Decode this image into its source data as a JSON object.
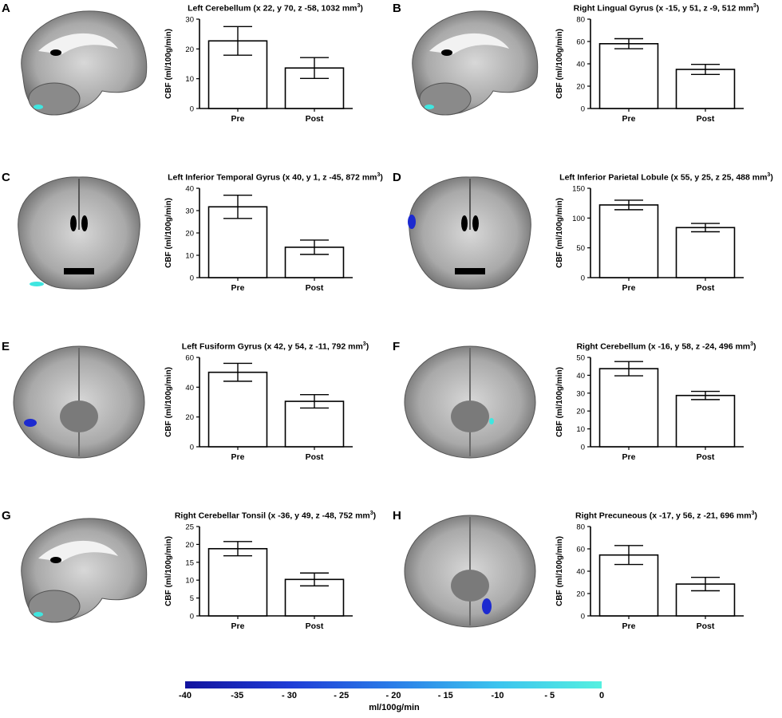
{
  "panels": [
    {
      "letter": "A",
      "view": "sagittal",
      "title": "Left Cerebellum (x 22, y 70, z -58, 1032 mm",
      "title_sup": "3",
      "title_end": ")",
      "chart_data": {
        "type": "bar",
        "categories": [
          "Pre",
          "Post"
        ],
        "values": [
          22.7,
          13.6
        ],
        "errors": [
          4.8,
          3.5
        ],
        "ylabel": "CBF (ml/100g/min)",
        "ylim": [
          0,
          30
        ],
        "yticks": [
          0,
          10,
          20,
          30
        ]
      }
    },
    {
      "letter": "B",
      "view": "sagittal",
      "title": "Right Lingual Gyrus (x -15, y 51, z -9, 512 mm",
      "title_sup": "3",
      "title_end": ")",
      "chart_data": {
        "type": "bar",
        "categories": [
          "Pre",
          "Post"
        ],
        "values": [
          58,
          35
        ],
        "errors": [
          4.5,
          4.5
        ],
        "ylabel": "CBF (ml/100g/min)",
        "ylim": [
          0,
          80
        ],
        "yticks": [
          0,
          20,
          40,
          60,
          80
        ]
      }
    },
    {
      "letter": "C",
      "view": "coronal",
      "title": "Left Inferior Temporal Gyrus (x 40, y 1, z -45, 872 mm",
      "title_sup": "3",
      "title_end": ")",
      "chart_data": {
        "type": "bar",
        "categories": [
          "Pre",
          "Post"
        ],
        "values": [
          31.7,
          13.6
        ],
        "errors": [
          5.2,
          3.2
        ],
        "ylabel": "CBF (ml/100g/min)",
        "ylim": [
          0,
          40
        ],
        "yticks": [
          0,
          10,
          20,
          30,
          40
        ]
      }
    },
    {
      "letter": "D",
      "view": "coronal",
      "title": "Left Inferior Parietal Lobule (x 55, y 25, z 25, 488 mm",
      "title_sup": "3",
      "title_end": ")",
      "chart_data": {
        "type": "bar",
        "categories": [
          "Pre",
          "Post"
        ],
        "values": [
          122,
          84
        ],
        "errors": [
          8,
          7
        ],
        "ylabel": "CBF (ml/100g/min)",
        "ylim": [
          0,
          150
        ],
        "yticks": [
          0,
          50,
          100,
          150
        ]
      }
    },
    {
      "letter": "E",
      "view": "axial",
      "title": "Left Fusiform Gyrus (x 42, y 54, z -11, 792 mm",
      "title_sup": "3",
      "title_end": ")",
      "chart_data": {
        "type": "bar",
        "categories": [
          "Pre",
          "Post"
        ],
        "values": [
          50,
          30.5
        ],
        "errors": [
          6,
          4.5
        ],
        "ylabel": "CBF (ml/100g/min)",
        "ylim": [
          0,
          60
        ],
        "yticks": [
          0,
          20,
          40,
          60
        ]
      }
    },
    {
      "letter": "F",
      "view": "axial",
      "title": "Right Cerebellum (x -16, y 58, z -24, 496 mm",
      "title_sup": "3",
      "title_end": ")",
      "chart_data": {
        "type": "bar",
        "categories": [
          "Pre",
          "Post"
        ],
        "values": [
          43.7,
          28.7
        ],
        "errors": [
          4,
          2.3
        ],
        "ylabel": "CBF (ml/100g/min)",
        "ylim": [
          0,
          50
        ],
        "yticks": [
          0,
          10,
          20,
          30,
          40,
          50
        ]
      }
    },
    {
      "letter": "G",
      "view": "sagittal",
      "title": "Right Cerebellar Tonsil (x -36, y 49, z -48, 752 mm",
      "title_sup": "3",
      "title_end": ")",
      "chart_data": {
        "type": "bar",
        "categories": [
          "Pre",
          "Post"
        ],
        "values": [
          18.8,
          10.2
        ],
        "errors": [
          2,
          1.8
        ],
        "ylabel": "CBF (ml/100g/min)",
        "ylim": [
          0,
          25
        ],
        "yticks": [
          0,
          5,
          10,
          15,
          20,
          25
        ]
      }
    },
    {
      "letter": "H",
      "view": "axial",
      "title": "Right Precuneous (x -17, y 56, z -21, 696 mm",
      "title_sup": "3",
      "title_end": ")",
      "chart_data": {
        "type": "bar",
        "categories": [
          "Pre",
          "Post"
        ],
        "values": [
          54.5,
          28.5
        ],
        "errors": [
          8.5,
          6
        ],
        "ylabel": "CBF (ml/100g/min)",
        "ylim": [
          0,
          80
        ],
        "yticks": [
          0,
          20,
          40,
          60,
          80
        ]
      }
    }
  ],
  "colorbar": {
    "labels": [
      "-40",
      "-35",
      "- 30",
      "- 25",
      "- 20",
      "- 15",
      "-10",
      "- 5",
      "0"
    ],
    "unit": "ml/100g/min",
    "colors": [
      "#12139e",
      "#1f3cd6",
      "#2a7de8",
      "#3cc4ee",
      "#55f0e0"
    ]
  },
  "colors": {
    "bar_fill": "#ffffff",
    "bar_stroke": "#000000",
    "cluster_dark": "#1c2ad0",
    "cluster_light": "#3fe6e0"
  }
}
